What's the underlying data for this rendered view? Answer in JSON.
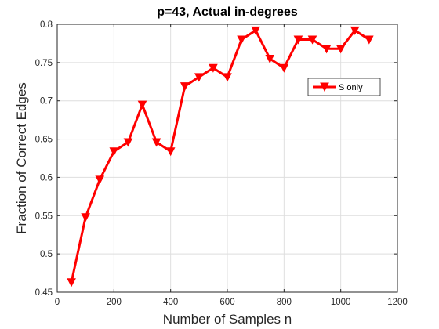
{
  "chart_data": {
    "type": "line",
    "title": "p=43, Actual in-degrees",
    "xlabel": "Number of Samples n",
    "ylabel": "Fraction of Correct Edges",
    "xlim": [
      0,
      1200
    ],
    "ylim": [
      0.45,
      0.8
    ],
    "xticks": [
      0,
      200,
      400,
      600,
      800,
      1000,
      1200
    ],
    "yticks": [
      0.45,
      0.5,
      0.55,
      0.6,
      0.65,
      0.7,
      0.75,
      0.8
    ],
    "ytick_labels": [
      "0.45",
      "0.5",
      "0.55",
      "0.6",
      "0.65",
      "0.7",
      "0.75",
      "0.8"
    ],
    "grid": true,
    "legend_position": "upper-right",
    "series": [
      {
        "name": "S only",
        "color": "#ff0000",
        "marker": "triangle-down",
        "x": [
          50,
          100,
          150,
          200,
          250,
          300,
          350,
          400,
          450,
          500,
          550,
          600,
          650,
          700,
          750,
          800,
          850,
          900,
          950,
          1000,
          1050,
          1100
        ],
        "values": [
          0.463,
          0.548,
          0.597,
          0.634,
          0.646,
          0.695,
          0.646,
          0.634,
          0.719,
          0.731,
          0.743,
          0.731,
          0.78,
          0.792,
          0.755,
          0.743,
          0.78,
          0.78,
          0.768,
          0.768,
          0.792,
          0.78
        ]
      }
    ]
  }
}
